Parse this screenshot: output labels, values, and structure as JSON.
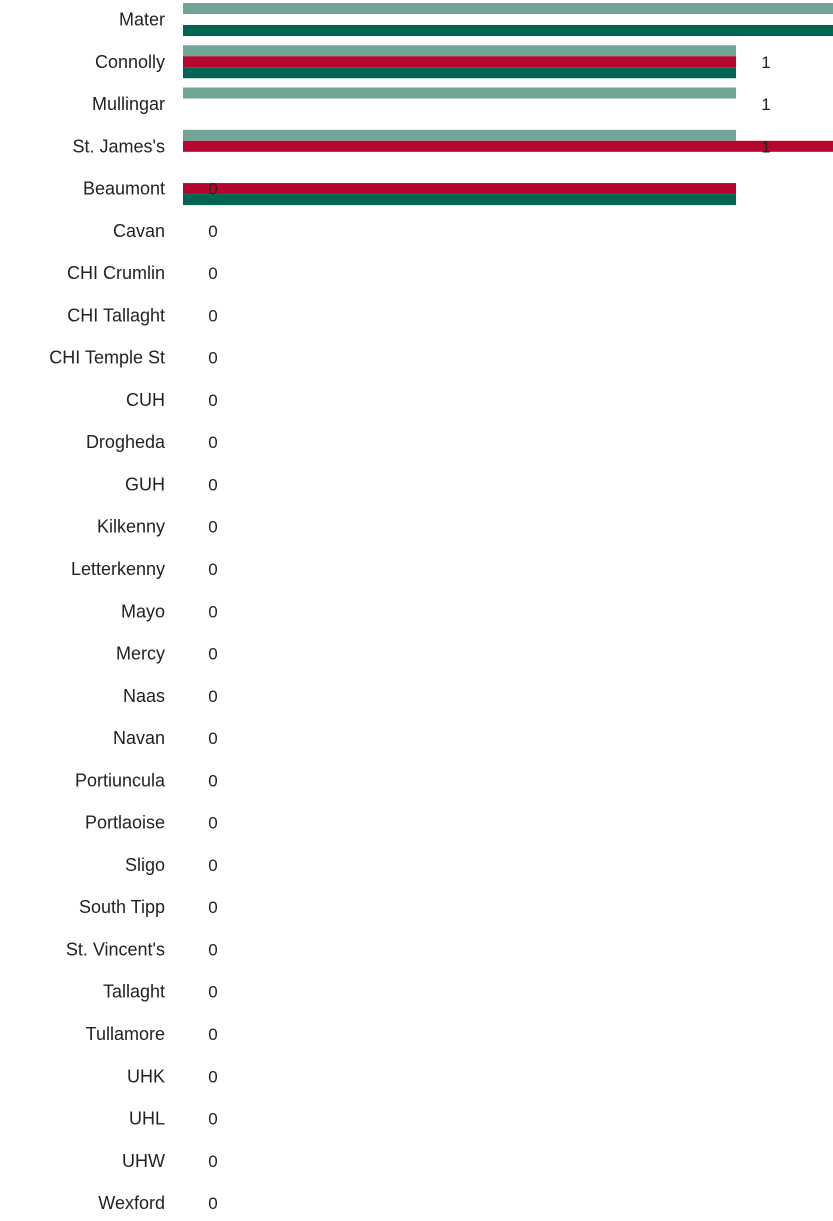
{
  "chart_data": {
    "type": "bar",
    "orientation": "horizontal",
    "categories": [
      "Mater",
      "Connolly",
      "Mullingar",
      "St. James's",
      "Beaumont",
      "Cavan",
      "CHI Crumlin",
      "CHI Tallaght",
      "CHI Temple St",
      "CUH",
      "Drogheda",
      "GUH",
      "Kilkenny",
      "Letterkenny",
      "Mayo",
      "Mercy",
      "Naas",
      "Navan",
      "Portiuncula",
      "Portlaoise",
      "Sligo",
      "South Tipp",
      "St. Vincent's",
      "Tallaght",
      "Tullamore",
      "UHK",
      "UHL",
      "UHW",
      "Wexford"
    ],
    "series": [
      {
        "color": "#70a597",
        "values": [
          2,
          1,
          1,
          1,
          0,
          0,
          0,
          0,
          0,
          0,
          0,
          0,
          0,
          0,
          0,
          0,
          0,
          0,
          0,
          0,
          0,
          0,
          0,
          0,
          0,
          0,
          0,
          0,
          0
        ]
      },
      {
        "color": "#b5072e",
        "values": [
          0,
          1,
          0,
          2,
          1,
          0,
          0,
          0,
          0,
          0,
          0,
          0,
          0,
          0,
          0,
          0,
          0,
          0,
          0,
          0,
          0,
          0,
          0,
          0,
          0,
          0,
          0,
          0,
          0
        ]
      },
      {
        "color": "#006653",
        "values": [
          2,
          1,
          0,
          0,
          1,
          0,
          0,
          0,
          0,
          0,
          0,
          0,
          0,
          0,
          0,
          0,
          0,
          0,
          0,
          0,
          0,
          0,
          0,
          0,
          0,
          0,
          0,
          0,
          0
        ]
      }
    ],
    "totals": [
      2,
      1,
      1,
      1,
      0,
      0,
      0,
      0,
      0,
      0,
      0,
      0,
      0,
      0,
      0,
      0,
      0,
      0,
      0,
      0,
      0,
      0,
      0,
      0,
      0,
      0,
      0,
      0,
      0
    ],
    "xlim": [
      0,
      2
    ],
    "grid": false,
    "title": "",
    "xlabel": "",
    "ylabel": ""
  }
}
